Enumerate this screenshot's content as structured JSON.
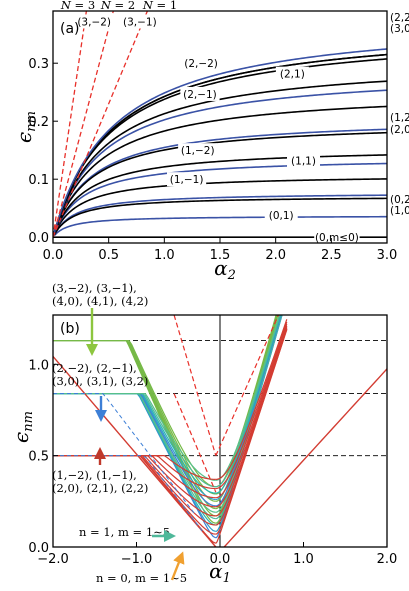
{
  "chart_data": [
    {
      "panel": "(a)",
      "type": "line",
      "xlabel": "α₂",
      "ylabel": "ϵ_nm",
      "xlim": [
        0,
        3.0
      ],
      "ylim": [
        -0.01,
        0.39
      ],
      "xticks": [
        "0.0",
        "0.5",
        "1.0",
        "1.5",
        "2.0",
        "2.5",
        "3.0"
      ],
      "yticks": [
        "0.0",
        "0.1",
        "0.2",
        "0.3"
      ],
      "dashed_lines": [
        {
          "label": "N = 3",
          "slope": 1.3
        },
        {
          "label": "N = 2",
          "slope": 0.72
        },
        {
          "label": "N = 1",
          "slope": 0.46
        }
      ],
      "series": [
        {
          "name": "(0,m≤0)",
          "color": "#000000",
          "asymptote": 0.0
        },
        {
          "name": "(0,1)",
          "color": "#3a52a6",
          "asymptote": 0.037
        },
        {
          "name": "(0,2)",
          "color": "#3a52a6",
          "asymptote": 0.077,
          "right_label": "(0,2)"
        },
        {
          "name": "(1,0)",
          "color": "#000000",
          "asymptote": 0.071,
          "right_label": "(1,0)"
        },
        {
          "name": "(1,−1)",
          "color": "#000000",
          "asymptote": 0.108
        },
        {
          "name": "(1,1)",
          "color": "#3a52a6",
          "asymptote": 0.138
        },
        {
          "name": "(1,−2)",
          "color": "#000000",
          "asymptote": 0.155
        },
        {
          "name": "(1,2)",
          "color": "#3a52a6",
          "asymptote": 0.207,
          "right_label": "(1,2)"
        },
        {
          "name": "(2,0)",
          "color": "#000000",
          "asymptote": 0.2,
          "right_label": "(2,0)"
        },
        {
          "name": "(2,−1)",
          "color": "#000000",
          "asymptote": 0.255
        },
        {
          "name": "(2,1)",
          "color": "#3a52a6",
          "asymptote": 0.29
        },
        {
          "name": "(2,−2)",
          "color": "#000000",
          "asymptote": 0.31
        },
        {
          "name": "(3,−2)",
          "color": "#000000",
          "asymptote": 0.36
        },
        {
          "name": "(3,−1)",
          "color": "#000000",
          "asymptote": 0.37
        },
        {
          "name": "(3,0)",
          "color": "#000000",
          "asymptote": 0.37,
          "right_label": "(3,0)"
        },
        {
          "name": "(2,2)",
          "color": "#3a52a6",
          "asymptote": 0.383,
          "right_label": "(2,2)"
        }
      ]
    },
    {
      "panel": "(b)",
      "type": "line",
      "xlabel": "α₁",
      "ylabel": "ϵ_nm",
      "xlim": [
        -2.0,
        2.0
      ],
      "ylim": [
        0.0,
        1.27
      ],
      "xticks": [
        "−2.0",
        "−1.0",
        "0.0",
        "1.0",
        "2.0"
      ],
      "yticks": [
        "0.0",
        "0.5",
        "1.0"
      ],
      "plateau_levels": [
        0.5,
        0.84,
        1.13
      ],
      "annotations": [
        {
          "text": [
            "(3,−2), (3,−1),",
            "(4,0), (4,1), (4,2)"
          ],
          "points_to": 1.13,
          "arrow_color": "#8dc63f"
        },
        {
          "text": [
            "(2,−2), (2,−1),",
            "(3,0), (3,1), (3,2)"
          ],
          "points_to": 0.84,
          "arrow_color": "#3d7fd6"
        },
        {
          "text": [
            "(1,−2), (1,−1),",
            "(2,0), (2,1), (2,2)"
          ],
          "points_to": 0.5,
          "arrow_color": "#c0392b"
        },
        {
          "text": [
            "n = 1, m = 1∼5"
          ],
          "arrow_color": "#4fb89a"
        },
        {
          "text": [
            "n = 0, m = 1∼5"
          ],
          "arrow_color": "#f0a030"
        }
      ]
    }
  ]
}
